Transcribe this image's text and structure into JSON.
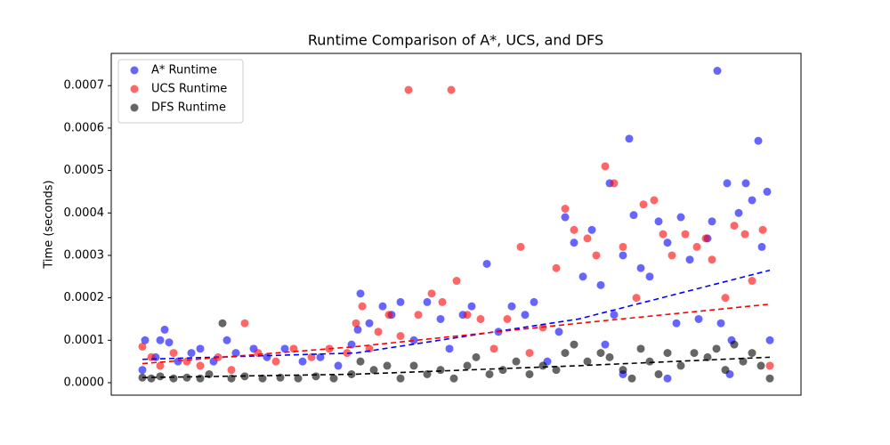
{
  "chart_data": {
    "type": "scatter",
    "title": "Runtime Comparison of A*, UCS, and DFS",
    "y_label": "Time (seconds)",
    "xlim": [
      0,
      775
    ],
    "ylim": [
      -2.94e-05,
      0.000776
    ],
    "yticks": [
      {
        "value": 0,
        "label": "0.0000"
      },
      {
        "value": 0.0001,
        "label": "0.0001"
      },
      {
        "value": 0.0002,
        "label": "0.0002"
      },
      {
        "value": 0.0003,
        "label": "0.0003"
      },
      {
        "value": 0.0004,
        "label": "0.0004"
      },
      {
        "value": 0.0005,
        "label": "0.0005"
      },
      {
        "value": 0.0006,
        "label": "0.0006"
      },
      {
        "value": 0.0007,
        "label": "0.0007"
      }
    ],
    "legend": "upper left",
    "series": [
      {
        "name": "A* Runtime",
        "color": "#0000ff",
        "x": [
          35,
          38,
          50,
          55,
          60,
          65,
          75,
          90,
          100,
          115,
          130,
          140,
          160,
          175,
          195,
          215,
          235,
          255,
          270,
          277,
          280,
          290,
          305,
          315,
          325,
          340,
          355,
          370,
          380,
          395,
          405,
          422,
          435,
          450,
          465,
          475,
          490,
          503,
          510,
          520,
          530,
          540,
          550,
          555,
          560,
          565,
          575,
          575,
          582,
          587,
          595,
          605,
          615,
          625,
          625,
          635,
          640,
          650,
          660,
          670,
          675,
          681,
          685,
          692,
          695,
          697,
          705,
          713,
          720,
          727,
          731,
          737,
          740
        ],
        "values": [
          3e-05,
          0.0001,
          6e-05,
          0.0001,
          0.000125,
          9.5e-05,
          5e-05,
          7e-05,
          8e-05,
          5e-05,
          0.0001,
          7e-05,
          8e-05,
          6e-05,
          8e-05,
          5e-05,
          6e-05,
          4e-05,
          9e-05,
          0.000125,
          0.00021,
          0.00014,
          0.00018,
          0.00016,
          0.00019,
          0.0001,
          0.00019,
          0.00015,
          8e-05,
          0.00016,
          0.00018,
          0.00028,
          0.00012,
          0.00018,
          0.00016,
          0.00019,
          5e-05,
          0.00012,
          0.00039,
          0.00033,
          0.00025,
          0.00036,
          0.00023,
          9e-05,
          0.00047,
          0.00016,
          0.0003,
          2e-05,
          0.000575,
          0.000395,
          0.00027,
          0.00025,
          0.00038,
          0.00033,
          1e-05,
          0.00014,
          0.00039,
          0.00029,
          0.00015,
          0.00034,
          0.00038,
          0.000735,
          0.00014,
          0.00047,
          2e-05,
          0.0001,
          0.0004,
          0.00047,
          0.00043,
          0.00057,
          0.00032,
          0.00045,
          0.0001
        ],
        "trend": {
          "x": [
            35,
            275,
            525,
            740
          ],
          "values": [
            5.5e-05,
            7e-05,
            0.00015,
            0.000265
          ]
        }
      },
      {
        "name": "UCS Runtime",
        "color": "#ff0000",
        "x": [
          35,
          45,
          55,
          70,
          85,
          100,
          120,
          135,
          150,
          165,
          185,
          205,
          225,
          245,
          265,
          275,
          282,
          290,
          300,
          312,
          325,
          334,
          345,
          360,
          372,
          382,
          388,
          400,
          415,
          430,
          445,
          460,
          470,
          485,
          500,
          510,
          520,
          535,
          545,
          555,
          565,
          575,
          590,
          598,
          610,
          620,
          630,
          645,
          658,
          668,
          675,
          690,
          700,
          712,
          720,
          732,
          740
        ],
        "values": [
          8.5e-05,
          6e-05,
          4e-05,
          7e-05,
          5e-05,
          4e-05,
          6e-05,
          3e-05,
          0.00014,
          7e-05,
          5e-05,
          8e-05,
          6e-05,
          8e-05,
          7e-05,
          0.00014,
          0.00018,
          8e-05,
          0.00012,
          0.00016,
          0.00011,
          0.00069,
          0.00016,
          0.00021,
          0.00019,
          0.00069,
          0.00024,
          0.00016,
          0.00015,
          8e-05,
          0.00015,
          0.00032,
          7e-05,
          0.00013,
          0.00027,
          0.00041,
          0.00036,
          0.00034,
          0.0003,
          0.00051,
          0.00047,
          0.00032,
          0.0002,
          0.00042,
          0.00043,
          0.00035,
          0.0003,
          0.00035,
          0.00032,
          0.00034,
          0.00029,
          0.0002,
          0.00037,
          0.00035,
          0.00024,
          0.00036,
          4e-05
        ],
        "trend": {
          "x": [
            35,
            275,
            525,
            740
          ],
          "values": [
            4.5e-05,
            8.5e-05,
            0.00014,
            0.000185
          ]
        }
      },
      {
        "name": "DFS Runtime",
        "color": "#000000",
        "x": [
          35,
          45,
          55,
          70,
          85,
          100,
          110,
          125,
          135,
          150,
          170,
          190,
          210,
          230,
          250,
          270,
          280,
          295,
          310,
          325,
          340,
          355,
          370,
          385,
          400,
          410,
          425,
          440,
          455,
          470,
          485,
          500,
          510,
          520,
          535,
          550,
          560,
          575,
          585,
          595,
          605,
          615,
          625,
          640,
          655,
          670,
          680,
          690,
          700,
          710,
          720,
          730,
          740
        ],
        "values": [
          1.2e-05,
          1e-05,
          1.5e-05,
          1e-05,
          1.2e-05,
          1e-05,
          2e-05,
          0.00014,
          1e-05,
          1.5e-05,
          1e-05,
          1.2e-05,
          1e-05,
          1.5e-05,
          1e-05,
          2e-05,
          5e-05,
          3e-05,
          4e-05,
          1e-05,
          4e-05,
          2e-05,
          3e-05,
          1e-05,
          4e-05,
          6e-05,
          2e-05,
          3e-05,
          5e-05,
          2e-05,
          4e-05,
          3e-05,
          7e-05,
          9e-05,
          5e-05,
          7e-05,
          6e-05,
          3e-05,
          1e-05,
          8e-05,
          5e-05,
          2e-05,
          7e-05,
          4e-05,
          7e-05,
          6e-05,
          8e-05,
          3e-05,
          9e-05,
          5e-05,
          7e-05,
          4e-05,
          1e-05
        ],
        "trend": {
          "x": [
            35,
            275,
            525,
            740
          ],
          "values": [
            1.2e-05,
            2e-05,
            4e-05,
            6e-05
          ]
        }
      }
    ]
  }
}
